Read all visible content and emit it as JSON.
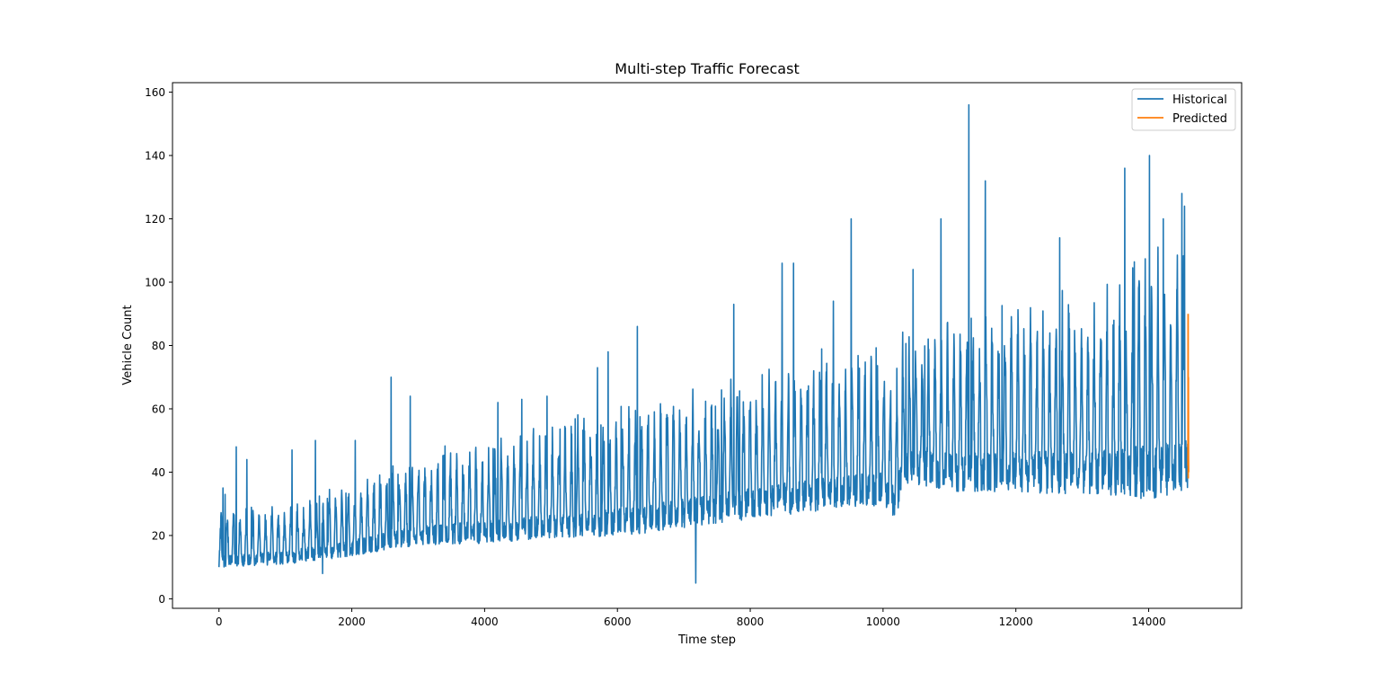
{
  "chart_data": {
    "type": "line",
    "title": "Multi-step Traffic Forecast",
    "xlabel": "Time step",
    "ylabel": "Vehicle Count",
    "xlim": [
      -700,
      15400
    ],
    "ylim": [
      -3,
      163
    ],
    "x_ticks": [
      0,
      2000,
      4000,
      6000,
      8000,
      10000,
      12000,
      14000
    ],
    "y_ticks": [
      0,
      20,
      40,
      60,
      80,
      100,
      120,
      140,
      160
    ],
    "grid": false,
    "legend_position": "upper right",
    "series": [
      {
        "name": "Historical",
        "color": "#1f77b4",
        "x_range": [
          0,
          14591
        ],
        "baseline_knots": [
          [
            0,
            12
          ],
          [
            1000,
            13
          ],
          [
            2000,
            16
          ],
          [
            3000,
            20
          ],
          [
            4000,
            21
          ],
          [
            5000,
            23
          ],
          [
            6000,
            24
          ],
          [
            7000,
            27
          ],
          [
            8000,
            30
          ],
          [
            9000,
            33
          ],
          [
            10000,
            35
          ],
          [
            10200,
            30
          ],
          [
            10300,
            42
          ],
          [
            11000,
            40
          ],
          [
            12000,
            40
          ],
          [
            13000,
            40
          ],
          [
            14000,
            40
          ],
          [
            14591,
            42
          ]
        ],
        "typical_peak_knots": [
          [
            0,
            28
          ],
          [
            1000,
            30
          ],
          [
            2000,
            36
          ],
          [
            3000,
            44
          ],
          [
            4000,
            50
          ],
          [
            5000,
            53
          ],
          [
            6000,
            60
          ],
          [
            7000,
            63
          ],
          [
            8000,
            70
          ],
          [
            9000,
            75
          ],
          [
            10000,
            78
          ],
          [
            10200,
            70
          ],
          [
            10300,
            85
          ],
          [
            11000,
            88
          ],
          [
            12000,
            92
          ],
          [
            13000,
            95
          ],
          [
            14000,
            108
          ],
          [
            14591,
            110
          ]
        ],
        "annotated_points": [
          [
            0,
            10
          ],
          [
            60,
            35
          ],
          [
            90,
            33
          ],
          [
            260,
            48
          ],
          [
            420,
            44
          ],
          [
            1100,
            47
          ],
          [
            1450,
            50
          ],
          [
            1560,
            8
          ],
          [
            2050,
            50
          ],
          [
            2590,
            70
          ],
          [
            2880,
            64
          ],
          [
            4200,
            62
          ],
          [
            4560,
            63
          ],
          [
            4940,
            64
          ],
          [
            5700,
            73
          ],
          [
            5860,
            78
          ],
          [
            6300,
            86
          ],
          [
            7180,
            5
          ],
          [
            7750,
            93
          ],
          [
            8480,
            106
          ],
          [
            8650,
            106
          ],
          [
            9250,
            94
          ],
          [
            9520,
            120
          ],
          [
            10450,
            104
          ],
          [
            10870,
            120
          ],
          [
            11290,
            156
          ],
          [
            11540,
            132
          ],
          [
            12660,
            114
          ],
          [
            13640,
            136
          ],
          [
            14010,
            140
          ],
          [
            14220,
            120
          ],
          [
            14500,
            128
          ],
          [
            14540,
            124
          ]
        ]
      },
      {
        "name": "Predicted",
        "color": "#ff7f0e",
        "x": [
          14592,
          14594,
          14596,
          14598,
          14600,
          14602
        ],
        "y": [
          42,
          90,
          38,
          70,
          45,
          40
        ]
      }
    ]
  }
}
